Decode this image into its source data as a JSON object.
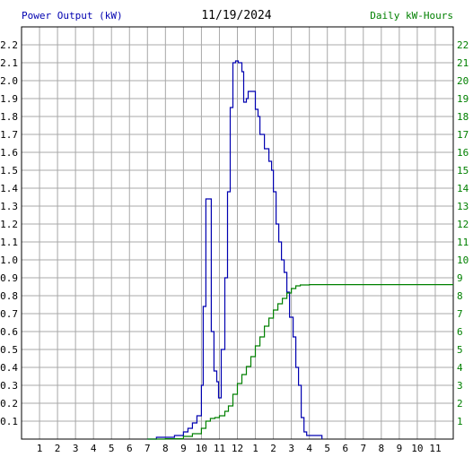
{
  "header": {
    "left_title": "Power Output (kW)",
    "date": "11/19/2024",
    "right_title": "Daily kW-Hours"
  },
  "chart_data": {
    "type": "line",
    "title": "11/19/2024",
    "x_tick_labels": [
      "1",
      "2",
      "3",
      "4",
      "5",
      "6",
      "7",
      "8",
      "9",
      "10",
      "11",
      "12",
      "1",
      "2",
      "3",
      "4",
      "5",
      "6",
      "7",
      "8",
      "9",
      "10",
      "11"
    ],
    "xlim": [
      0,
      24
    ],
    "y_left": {
      "label": "Power Output (kW)",
      "lim": [
        0,
        2.3
      ],
      "ticks": [
        "0.1",
        "0.2",
        "0.3",
        "0.4",
        "0.5",
        "0.6",
        "0.7",
        "0.8",
        "0.9",
        "1.0",
        "1.1",
        "1.2",
        "1.3",
        "1.4",
        "1.5",
        "1.6",
        "1.7",
        "1.8",
        "1.9",
        "2.0",
        "2.1",
        "2.2"
      ]
    },
    "y_right": {
      "label": "Daily kW-Hours",
      "lim": [
        0,
        23
      ],
      "ticks": [
        "1",
        "2",
        "3",
        "4",
        "5",
        "6",
        "7",
        "8",
        "9",
        "10",
        "11",
        "12",
        "13",
        "14",
        "15",
        "16",
        "17",
        "18",
        "19",
        "20",
        "21",
        "22"
      ]
    },
    "grid": true,
    "series": [
      {
        "name": "Power Output (kW)",
        "axis": "left",
        "color": "#0000b0",
        "points": [
          [
            7.0,
            0.0
          ],
          [
            7.5,
            0.01
          ],
          [
            8.0,
            0.01
          ],
          [
            8.5,
            0.02
          ],
          [
            9.0,
            0.04
          ],
          [
            9.25,
            0.06
          ],
          [
            9.5,
            0.09
          ],
          [
            9.75,
            0.13
          ],
          [
            10.0,
            0.3
          ],
          [
            10.1,
            0.74
          ],
          [
            10.25,
            1.34
          ],
          [
            10.45,
            1.34
          ],
          [
            10.55,
            0.6
          ],
          [
            10.7,
            0.38
          ],
          [
            10.85,
            0.32
          ],
          [
            10.95,
            0.23
          ],
          [
            11.1,
            0.5
          ],
          [
            11.3,
            0.9
          ],
          [
            11.45,
            1.38
          ],
          [
            11.6,
            1.85
          ],
          [
            11.75,
            2.1
          ],
          [
            11.9,
            2.11
          ],
          [
            12.05,
            2.1
          ],
          [
            12.25,
            2.05
          ],
          [
            12.35,
            1.88
          ],
          [
            12.5,
            1.9
          ],
          [
            12.6,
            1.94
          ],
          [
            12.9,
            1.94
          ],
          [
            13.0,
            1.84
          ],
          [
            13.15,
            1.8
          ],
          [
            13.25,
            1.7
          ],
          [
            13.5,
            1.62
          ],
          [
            13.75,
            1.55
          ],
          [
            13.9,
            1.5
          ],
          [
            14.0,
            1.38
          ],
          [
            14.15,
            1.2
          ],
          [
            14.3,
            1.1
          ],
          [
            14.45,
            1.0
          ],
          [
            14.6,
            0.93
          ],
          [
            14.75,
            0.82
          ],
          [
            14.9,
            0.68
          ],
          [
            15.1,
            0.57
          ],
          [
            15.25,
            0.4
          ],
          [
            15.4,
            0.3
          ],
          [
            15.55,
            0.12
          ],
          [
            15.7,
            0.04
          ],
          [
            15.85,
            0.02
          ],
          [
            16.7,
            0.0
          ]
        ]
      },
      {
        "name": "Daily kW-Hours",
        "axis": "right",
        "color": "#008000",
        "points": [
          [
            7.0,
            0.0
          ],
          [
            8.0,
            0.02
          ],
          [
            9.0,
            0.15
          ],
          [
            9.5,
            0.3
          ],
          [
            10.0,
            0.6
          ],
          [
            10.25,
            1.0
          ],
          [
            10.5,
            1.15
          ],
          [
            10.75,
            1.2
          ],
          [
            11.0,
            1.3
          ],
          [
            11.3,
            1.55
          ],
          [
            11.5,
            1.85
          ],
          [
            11.75,
            2.5
          ],
          [
            12.0,
            3.1
          ],
          [
            12.25,
            3.6
          ],
          [
            12.5,
            4.05
          ],
          [
            12.75,
            4.6
          ],
          [
            13.0,
            5.2
          ],
          [
            13.25,
            5.7
          ],
          [
            13.5,
            6.3
          ],
          [
            13.75,
            6.75
          ],
          [
            14.0,
            7.2
          ],
          [
            14.25,
            7.55
          ],
          [
            14.5,
            7.85
          ],
          [
            14.75,
            8.15
          ],
          [
            15.0,
            8.4
          ],
          [
            15.25,
            8.55
          ],
          [
            15.5,
            8.6
          ],
          [
            16.0,
            8.62
          ],
          [
            24.0,
            8.62
          ]
        ]
      }
    ]
  }
}
